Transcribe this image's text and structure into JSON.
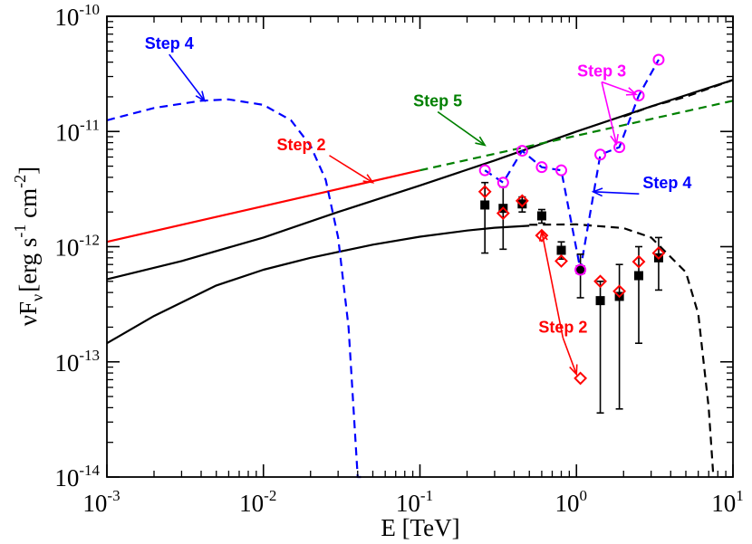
{
  "chart_data": {
    "type": "line",
    "xscale": "log",
    "yscale": "log",
    "xlim": [
      0.001,
      10
    ],
    "ylim": [
      1e-14,
      1e-10
    ],
    "xlabel": "E [TeV]",
    "ylabel": {
      "nu": "ν",
      "F": "F",
      "sub": "ν",
      "units_a": "[erg s",
      "exp1": "-1",
      "units_b": " cm",
      "exp2": "-2",
      "units_c": "]"
    },
    "x_ticks": [
      {
        "value": 0.001,
        "base": "10",
        "exp": "-3"
      },
      {
        "value": 0.01,
        "base": "10",
        "exp": "-2"
      },
      {
        "value": 0.1,
        "base": "10",
        "exp": "-1"
      },
      {
        "value": 1,
        "base": "10",
        "exp": "0"
      },
      {
        "value": 10,
        "base": "10",
        "exp": "1"
      }
    ],
    "y_ticks": [
      {
        "value": 1e-14,
        "base": "10",
        "exp": "-14"
      },
      {
        "value": 1e-13,
        "base": "10",
        "exp": "-13"
      },
      {
        "value": 1e-12,
        "base": "10",
        "exp": "-12"
      },
      {
        "value": 1e-11,
        "base": "10",
        "exp": "-11"
      },
      {
        "value": 1e-10,
        "base": "10",
        "exp": "-10"
      }
    ],
    "colors": {
      "black": "#000000",
      "red": "#ff0000",
      "blue": "#0000ff",
      "magenta": "#ff00ff",
      "green": "#008000"
    },
    "series": [
      {
        "name": "model-upper-black",
        "style": "solid",
        "color": "#000000",
        "x": [
          0.001,
          0.003,
          0.01,
          0.03,
          0.1,
          0.3,
          1,
          3,
          10
        ],
        "y": [
          5.2e-13,
          7.5e-13,
          1.2e-12,
          2e-12,
          3.4e-12,
          5.6e-12,
          1e-11,
          1.65e-11,
          2.8e-11
        ]
      },
      {
        "name": "model-upper-black-dashed",
        "style": "dashed",
        "color": "#000000",
        "x": [
          2,
          3,
          5,
          10
        ],
        "y": [
          1.35e-11,
          1.65e-11,
          2e-11,
          2.8e-11
        ]
      },
      {
        "name": "model-lower-black",
        "style": "solid",
        "color": "#000000",
        "x": [
          0.001,
          0.002,
          0.005,
          0.01,
          0.02,
          0.05,
          0.1,
          0.2,
          0.3,
          0.5
        ],
        "y": [
          1.45e-13,
          2.5e-13,
          4.6e-13,
          6.3e-13,
          8e-13,
          1.04e-12,
          1.22e-12,
          1.38e-12,
          1.46e-12,
          1.52e-12
        ]
      },
      {
        "name": "model-lower-black-dashed",
        "style": "dashed",
        "color": "#000000",
        "x": [
          0.5,
          1,
          2,
          3,
          5,
          6,
          7,
          7.5
        ],
        "y": [
          1.55e-12,
          1.56e-12,
          1.45e-12,
          1.2e-12,
          6e-13,
          2.6e-13,
          4e-14,
          1e-14
        ]
      },
      {
        "name": "step2-red-line",
        "style": "solid",
        "color": "#ff0000",
        "x": [
          0.001,
          0.1
        ],
        "y": [
          1.1e-12,
          4.6e-12
        ]
      },
      {
        "name": "step5-green-line",
        "style": "dashed",
        "color": "#008000",
        "x": [
          0.1,
          1,
          10
        ],
        "y": [
          4.6e-12,
          9.2e-12,
          1.85e-11
        ]
      },
      {
        "name": "step4-blue-curve",
        "style": "dashed",
        "color": "#0000ff",
        "x": [
          0.001,
          0.002,
          0.004,
          0.006,
          0.01,
          0.015,
          0.02,
          0.025,
          0.03,
          0.035,
          0.04,
          0.042
        ],
        "y": [
          1.25e-11,
          1.6e-11,
          1.85e-11,
          1.9e-11,
          1.7e-11,
          1.25e-11,
          7.5e-12,
          3.8e-12,
          1.2e-12,
          2e-13,
          1e-14,
          1e-14
        ]
      },
      {
        "name": "step4-blue-data-line",
        "style": "dashed",
        "color": "#0000ff",
        "x": [
          0.26,
          0.34,
          0.45,
          0.6,
          0.8,
          1.06,
          1.42,
          1.88,
          2.5,
          3.35
        ],
        "y": [
          4.6e-12,
          3.6e-12,
          6.8e-12,
          4.9e-12,
          4.6e-12,
          6.3e-13,
          6.3e-12,
          7.3e-12,
          2.05e-11,
          4.2e-11
        ]
      }
    ],
    "points": {
      "black_squares": {
        "x": [
          0.26,
          0.34,
          0.45,
          0.6,
          0.8,
          1.06,
          1.42,
          1.88,
          2.5,
          3.35
        ],
        "y": [
          2.3e-12,
          2.15e-12,
          2.35e-12,
          1.85e-12,
          9.3e-13,
          6.3e-13,
          3.4e-13,
          3.7e-13,
          5.6e-13,
          8e-13
        ],
        "y_low": [
          8.8e-13,
          9.5e-13,
          2e-12,
          1.6e-12,
          7.8e-13,
          3.6e-13,
          3.6e-14,
          3.9e-14,
          1.45e-13,
          4.2e-13
        ],
        "y_high": [
          3.6e-12,
          3.3e-12,
          2.7e-12,
          2.1e-12,
          1.1e-12,
          8.6e-13,
          5e-13,
          7e-13,
          1e-12,
          1.2e-12
        ]
      },
      "red_diamonds": {
        "x": [
          0.26,
          0.34,
          0.45,
          0.6,
          0.8,
          1.06,
          1.42,
          1.88,
          2.5,
          3.35
        ],
        "y": [
          3e-12,
          1.95e-12,
          2.5e-12,
          1.25e-12,
          7.5e-13,
          7.2e-14,
          5e-13,
          4.1e-13,
          7.4e-13,
          8.8e-13
        ]
      },
      "magenta_circles": {
        "x": [
          0.26,
          0.34,
          0.45,
          0.6,
          0.8,
          1.06,
          1.42,
          1.88,
          2.5,
          3.35
        ],
        "y": [
          4.6e-12,
          3.6e-12,
          6.8e-12,
          4.9e-12,
          4.6e-12,
          6.3e-13,
          6.3e-12,
          7.3e-12,
          2.05e-11,
          4.2e-11
        ]
      }
    },
    "annotations": [
      {
        "text": "Step 4",
        "color": "#0000ff",
        "x": 0.0025,
        "y": 5.2e-11,
        "arrow_to": [
          0.0042,
          1.85e-11
        ],
        "anchor": "middle"
      },
      {
        "text": "Step 5",
        "color": "#008000",
        "x": 0.13,
        "y": 1.65e-11,
        "arrow_to": [
          0.26,
          7.6e-12
        ],
        "anchor": "middle"
      },
      {
        "text": "Step 2",
        "color": "#ff0000",
        "x": 0.025,
        "y": 6.9e-12,
        "arrow_to": [
          0.05,
          3.6e-12
        ],
        "anchor": "end"
      },
      {
        "text": "Step 3",
        "color": "#ff00ff",
        "x": 1.45,
        "y": 3e-11,
        "arrow_to": [
          2.4,
          2.1e-11
        ],
        "arrow_to2": [
          1.8,
          7.8e-12
        ],
        "anchor": "middle"
      },
      {
        "text": "Step 4",
        "color": "#0000ff",
        "x": 2.65,
        "y": 3.2e-12,
        "arrow_to": [
          1.28,
          3e-12
        ],
        "anchor": "start"
      },
      {
        "text": "Step 2",
        "color": "#ff0000",
        "x": 0.82,
        "y": 1.8e-13,
        "arrow_to": [
          0.6,
          1.35e-12
        ],
        "arrow_to2": [
          1.0,
          7.8e-14
        ],
        "anchor": "middle"
      }
    ]
  }
}
